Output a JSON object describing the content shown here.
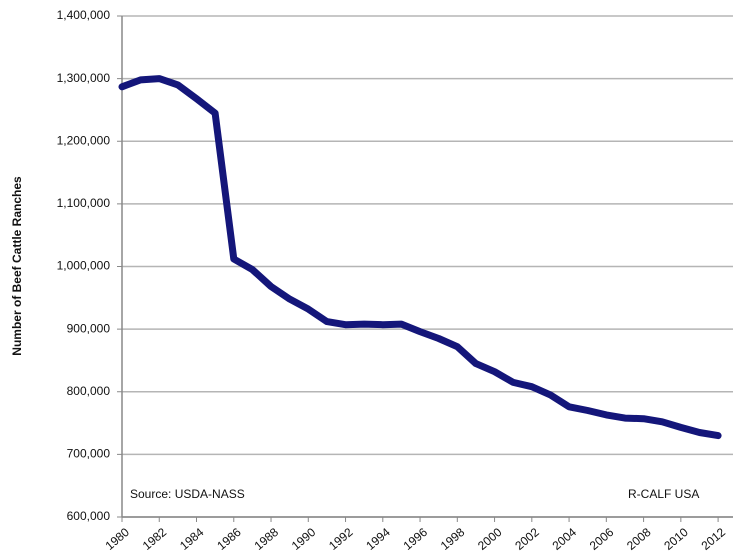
{
  "chart_data": {
    "type": "line",
    "y_label": "Number of Beef Cattle Ranches",
    "annotations": [
      "Source:  USDA-NASS",
      "R-CALF USA"
    ],
    "x": [
      1980,
      1981,
      1982,
      1983,
      1984,
      1985,
      1986,
      1987,
      1988,
      1989,
      1990,
      1991,
      1992,
      1993,
      1994,
      1995,
      1996,
      1997,
      1998,
      1999,
      2000,
      2001,
      2002,
      2003,
      2004,
      2005,
      2006,
      2007,
      2008,
      2009,
      2010,
      2011,
      2012
    ],
    "series": [
      {
        "name": "Beef Cattle Ranches",
        "color": "#14167a",
        "values": [
          1287000,
          1298000,
          1300000,
          1290000,
          1268000,
          1245000,
          1012000,
          995000,
          968000,
          948000,
          932000,
          912000,
          907000,
          908000,
          907000,
          908000,
          896000,
          885000,
          872000,
          845000,
          832000,
          815000,
          808000,
          795000,
          776000,
          770000,
          763000,
          758000,
          757000,
          752000,
          743000,
          735000,
          730000
        ]
      }
    ],
    "xlim": [
      1980,
      2012.8
    ],
    "xticks": [
      1980,
      1982,
      1984,
      1986,
      1988,
      1990,
      1992,
      1994,
      1996,
      1998,
      2000,
      2002,
      2004,
      2006,
      2008,
      2010,
      2012
    ],
    "ylim": [
      600000,
      1400000
    ],
    "yticks": [
      {
        "value": 600000,
        "label": "600,000"
      },
      {
        "value": 700000,
        "label": "700,000"
      },
      {
        "value": 800000,
        "label": "800,000"
      },
      {
        "value": 900000,
        "label": "900,000"
      },
      {
        "value": 1000000,
        "label": "1,000,000"
      },
      {
        "value": 1100000,
        "label": "1,100,000"
      },
      {
        "value": 1200000,
        "label": "1,200,000"
      },
      {
        "value": 1300000,
        "label": "1,300,000"
      },
      {
        "value": 1400000,
        "label": "1,400,000"
      }
    ],
    "grid": true
  }
}
